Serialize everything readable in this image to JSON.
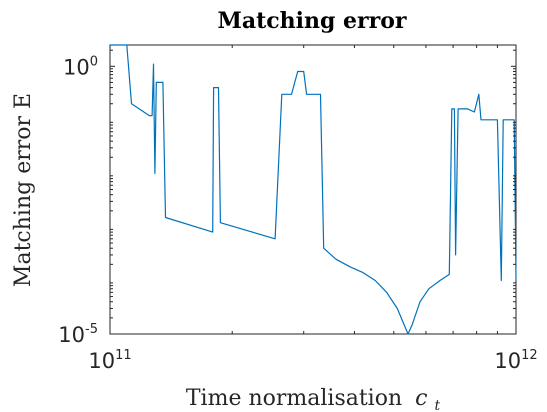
{
  "chart_data": {
    "type": "line",
    "title": "Matching error",
    "xlabel": "Time normalisation",
    "xlabel_symbol": "c",
    "xlabel_subscript": "t",
    "ylabel": "Matching error E",
    "xscale": "log",
    "yscale": "log",
    "xlim": [
      100000000000.0,
      1000000000000.0
    ],
    "ylim": [
      1e-05,
      2.5
    ],
    "grid": false,
    "x_ticks": [
      {
        "value": 100000000000.0,
        "base": "10",
        "exp": "11"
      },
      {
        "value": 1000000000000.0,
        "base": "10",
        "exp": "12"
      }
    ],
    "y_ticks": [
      {
        "value": 1e-05,
        "base": "10",
        "exp": "-5"
      },
      {
        "value": 1,
        "base": "10",
        "exp": "0"
      }
    ],
    "series": [
      {
        "color": "#0072BD",
        "points": [
          [
            100000000000.0,
            2.5
          ],
          [
            110000000000.0,
            2.5
          ],
          [
            113000000000.0,
            0.2
          ],
          [
            125000000000.0,
            0.12
          ],
          [
            127000000000.0,
            0.12
          ],
          [
            128000000000.0,
            1.1
          ],
          [
            129000000000.0,
            0.01
          ],
          [
            130000000000.0,
            0.5
          ],
          [
            131000000000.0,
            0.5
          ],
          [
            135000000000.0,
            0.5
          ],
          [
            137000000000.0,
            0.0015
          ],
          [
            179000000000.0,
            0.0008
          ],
          [
            180000000000.0,
            0.4
          ],
          [
            185000000000.0,
            0.4
          ],
          [
            187000000000.0,
            0.0012
          ],
          [
            255000000000.0,
            0.0006
          ],
          [
            265000000000.0,
            0.3
          ],
          [
            280000000000.0,
            0.3
          ],
          [
            290000000000.0,
            0.8
          ],
          [
            300000000000.0,
            0.8
          ],
          [
            305000000000.0,
            0.3
          ],
          [
            330000000000.0,
            0.3
          ],
          [
            336000000000.0,
            0.0004
          ],
          [
            360000000000.0,
            0.00025
          ],
          [
            390000000000.0,
            0.00018
          ],
          [
            420000000000.0,
            0.00014
          ],
          [
            450000000000.0,
            0.0001
          ],
          [
            480000000000.0,
            6e-05
          ],
          [
            510000000000.0,
            3e-05
          ],
          [
            530000000000.0,
            1.5e-05
          ],
          [
            542000000000.0,
            1e-05
          ],
          [
            555000000000.0,
            1.5e-05
          ],
          [
            580000000000.0,
            4e-05
          ],
          [
            610000000000.0,
            7e-05
          ],
          [
            650000000000.0,
            0.0001
          ],
          [
            685000000000.0,
            0.00013
          ],
          [
            695000000000.0,
            0.16
          ],
          [
            705000000000.0,
            0.16
          ],
          [
            710000000000.0,
            0.0003
          ],
          [
            720000000000.0,
            0.16
          ],
          [
            760000000000.0,
            0.16
          ],
          [
            790000000000.0,
            0.14
          ],
          [
            810000000000.0,
            0.3
          ],
          [
            820000000000.0,
            0.1
          ],
          [
            850000000000.0,
            0.1
          ],
          [
            900000000000.0,
            0.1
          ],
          [
            920000000000.0,
            0.0001
          ],
          [
            930000000000.0,
            0.1
          ],
          [
            990000000000.0,
            0.1
          ],
          [
            1000000000000.0,
            0.0001
          ]
        ]
      }
    ]
  }
}
